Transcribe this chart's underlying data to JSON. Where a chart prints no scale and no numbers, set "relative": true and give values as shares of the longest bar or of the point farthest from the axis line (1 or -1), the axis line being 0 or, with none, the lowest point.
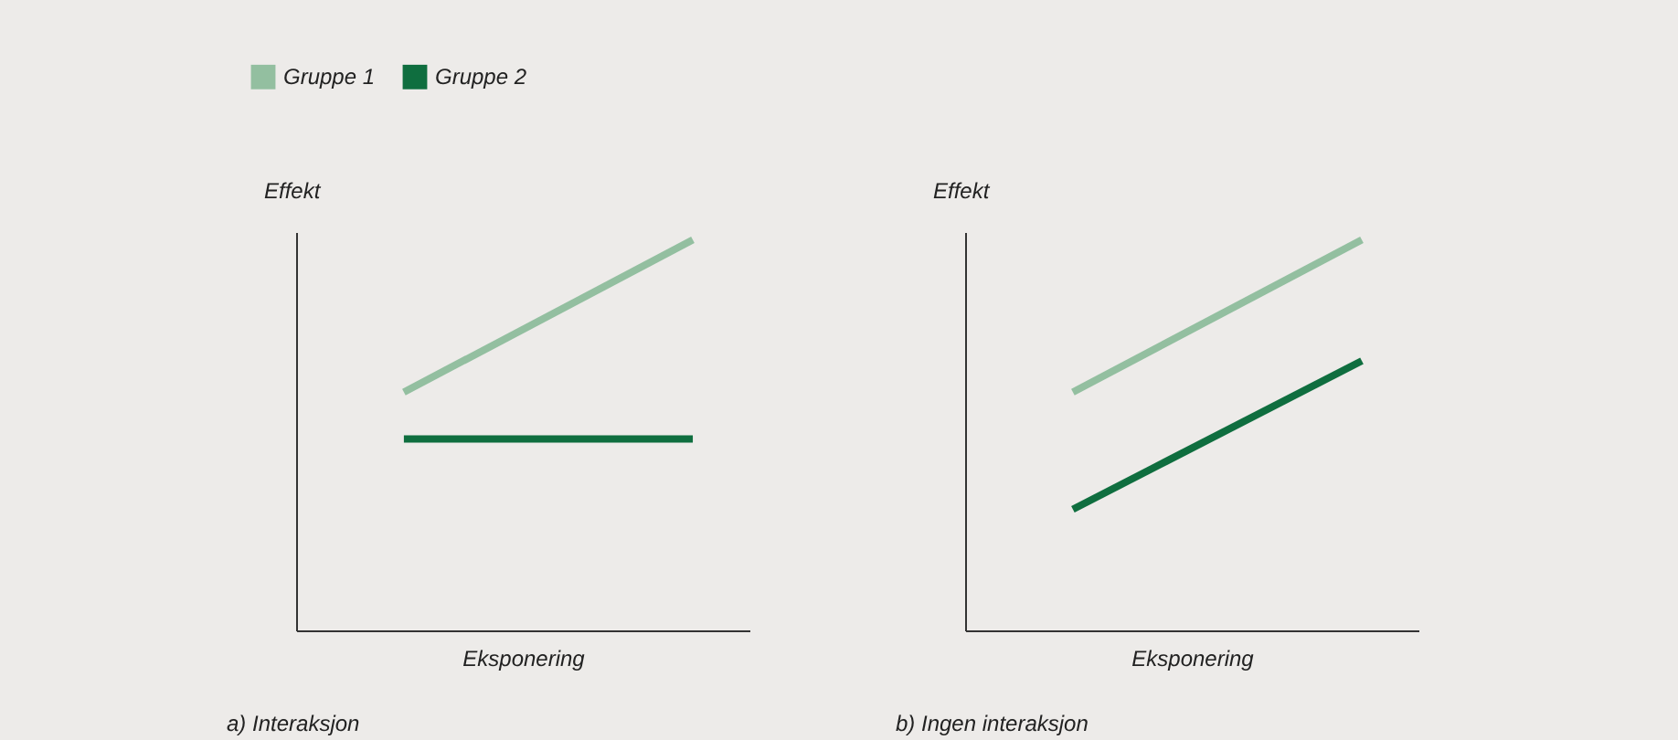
{
  "chart_data": [
    {
      "type": "line",
      "title": "a) Interaksjon",
      "xlabel": "Eksponering",
      "ylabel": "Effekt",
      "categories": [
        null,
        null
      ],
      "relative": true,
      "legend": "top left",
      "grid": false,
      "marker": "none",
      "line_style": "solid",
      "series": [
        {
          "name": "Gruppe 1",
          "color": "#93bfa0",
          "values": [
            0.61,
            1
          ]
        },
        {
          "name": "Gruppe 2",
          "color": "#0f6e3f",
          "values": [
            0.49,
            0.49
          ]
        }
      ]
    },
    {
      "type": "line",
      "title": "b) Ingen interaksjon",
      "xlabel": "Eksponering",
      "ylabel": "Effekt",
      "categories": [
        null,
        null
      ],
      "relative": true,
      "grid": false,
      "marker": "none",
      "line_style": "solid",
      "series": [
        {
          "name": "Gruppe 1",
          "color": "#93bfa0",
          "values": [
            0.61,
            1
          ]
        },
        {
          "name": "Gruppe 2",
          "color": "#0f6e3f",
          "values": [
            0.31,
            0.69
          ]
        }
      ]
    }
  ]
}
